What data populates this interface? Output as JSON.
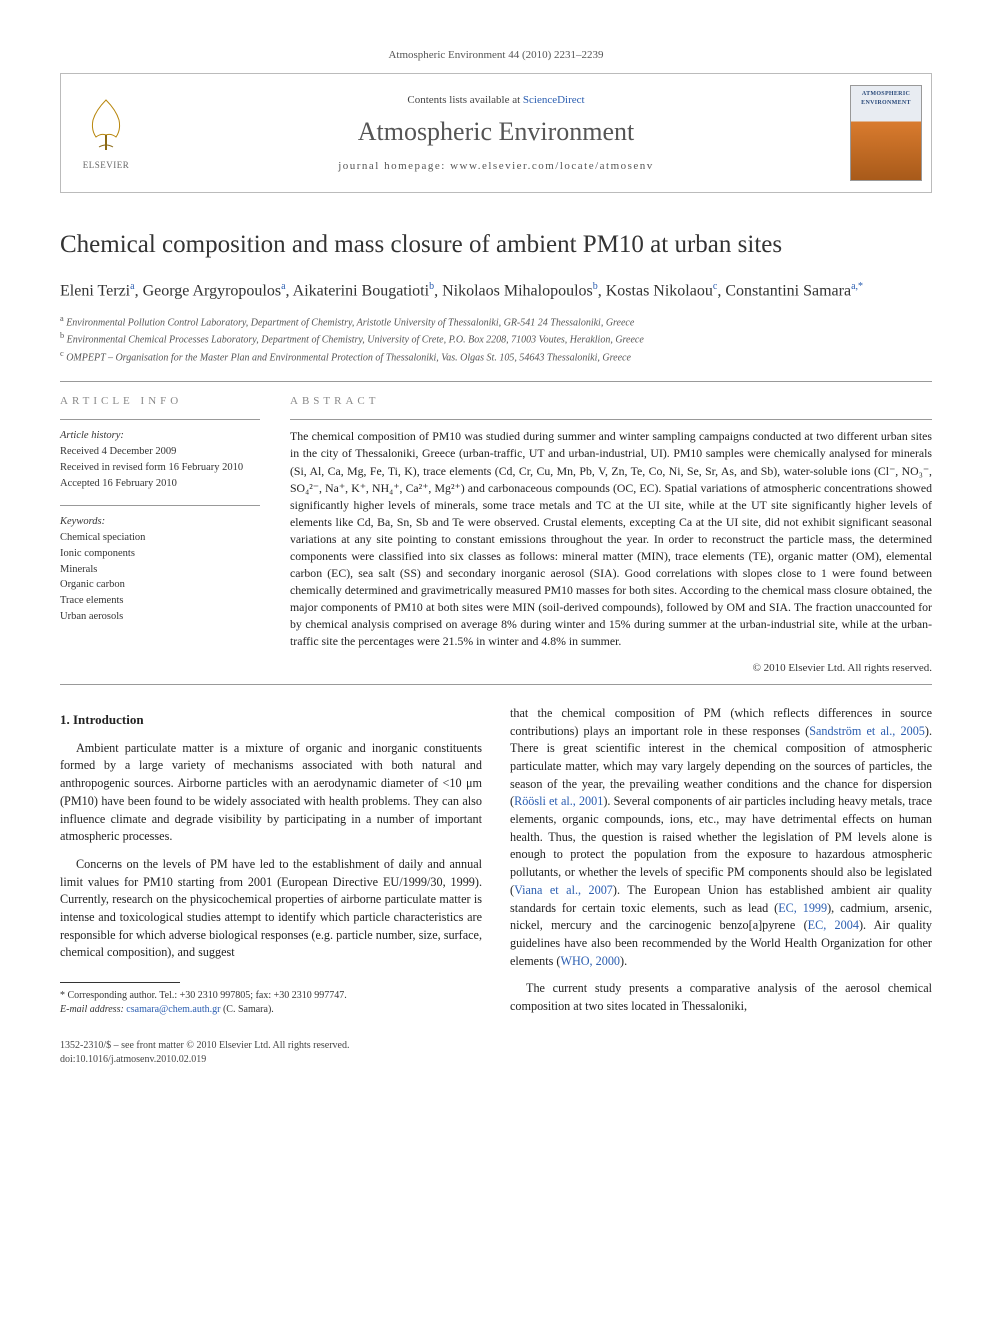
{
  "journal_ref": "Atmospheric Environment 44 (2010) 2231–2239",
  "header": {
    "contents_prefix": "Contents lists available at ",
    "contents_link": "ScienceDirect",
    "journal_name": "Atmospheric Environment",
    "homepage_prefix": "journal homepage: ",
    "homepage_url": "www.elsevier.com/locate/atmosenv",
    "elsevier_label": "ELSEVIER",
    "cover_title": "ATMOSPHERIC ENVIRONMENT"
  },
  "title": "Chemical composition and mass closure of ambient PM10 at urban sites",
  "authors_html": "Eleni Terzi<sup>a</sup>, George Argyropoulos<sup>a</sup>, Aikaterini Bougatioti<sup>b</sup>, Nikolaos Mihalopoulos<sup>b</sup>, Kostas Nikolaou<sup>c</sup>, Constantini Samara<sup>a,*</sup>",
  "affiliations": {
    "a": "Environmental Pollution Control Laboratory, Department of Chemistry, Aristotle University of Thessaloniki, GR-541 24 Thessaloniki, Greece",
    "b": "Environmental Chemical Processes Laboratory, Department of Chemistry, University of Crete, P.O. Box 2208, 71003 Voutes, Heraklion, Greece",
    "c": "OMPEPT – Organisation for the Master Plan and Environmental Protection of Thessaloniki, Vas. Olgas St. 105, 54643 Thessaloniki, Greece"
  },
  "article_info": {
    "label": "ARTICLE INFO",
    "history_title": "Article history:",
    "received": "Received 4 December 2009",
    "revised": "Received in revised form 16 February 2010",
    "accepted": "Accepted 16 February 2010",
    "keywords_title": "Keywords:",
    "keywords": [
      "Chemical speciation",
      "Ionic components",
      "Minerals",
      "Organic carbon",
      "Trace elements",
      "Urban aerosols"
    ]
  },
  "abstract": {
    "label": "ABSTRACT",
    "text": "The chemical composition of PM10 was studied during summer and winter sampling campaigns conducted at two different urban sites in the city of Thessaloniki, Greece (urban-traffic, UT and urban-industrial, UI). PM10 samples were chemically analysed for minerals (Si, Al, Ca, Mg, Fe, Ti, K), trace elements (Cd, Cr, Cu, Mn, Pb, V, Zn, Te, Co, Ni, Se, Sr, As, and Sb), water-soluble ions (Cl⁻, NO₃⁻, SO₄²⁻, Na⁺, K⁺, NH₄⁺, Ca²⁺, Mg²⁺) and carbonaceous compounds (OC, EC). Spatial variations of atmospheric concentrations showed significantly higher levels of minerals, some trace metals and TC at the UI site, while at the UT site significantly higher levels of elements like Cd, Ba, Sn, Sb and Te were observed. Crustal elements, excepting Ca at the UI site, did not exhibit significant seasonal variations at any site pointing to constant emissions throughout the year. In order to reconstruct the particle mass, the determined components were classified into six classes as follows: mineral matter (MIN), trace elements (TE), organic matter (OM), elemental carbon (EC), sea salt (SS) and secondary inorganic aerosol (SIA). Good correlations with slopes close to 1 were found between chemically determined and gravimetrically measured PM10 masses for both sites. According to the chemical mass closure obtained, the major components of PM10 at both sites were MIN (soil-derived compounds), followed by OM and SIA. The fraction unaccounted for by chemical analysis comprised on average 8% during winter and 15% during summer at the urban-industrial site, while at the urban-traffic site the percentages were 21.5% in winter and 4.8% in summer.",
    "copyright": "© 2010 Elsevier Ltd. All rights reserved."
  },
  "body": {
    "section_number": "1.",
    "section_title": "Introduction",
    "p1": "Ambient particulate matter is a mixture of organic and inorganic constituents formed by a large variety of mechanisms associated with both natural and anthropogenic sources. Airborne particles with an aerodynamic diameter of <10 μm (PM10) have been found to be widely associated with health problems. They can also influence climate and degrade visibility by participating in a number of important atmospheric processes.",
    "p2": "Concerns on the levels of PM have led to the establishment of daily and annual limit values for PM10 starting from 2001 (European Directive EU/1999/30, 1999). Currently, research on the physicochemical properties of airborne particulate matter is intense and toxicological studies attempt to identify which particle characteristics are responsible for which adverse biological responses (e.g. particle number, size, surface, chemical composition), and suggest",
    "p3_pre": "that the chemical composition of PM (which reflects differences in source contributions) plays an important role in these responses (",
    "p3_link1": "Sandström et al., 2005",
    "p3_mid1": "). There is great scientific interest in the chemical composition of atmospheric particulate matter, which may vary largely depending on the sources of particles, the season of the year, the prevailing weather conditions and the chance for dispersion (",
    "p3_link2": "Röösli et al., 2001",
    "p3_mid2": "). Several components of air particles including heavy metals, trace elements, organic compounds, ions, etc., may have detrimental effects on human health. Thus, the question is raised whether the legislation of PM levels alone is enough to protect the population from the exposure to hazardous atmospheric pollutants, or whether the levels of specific PM components should also be legislated (",
    "p3_link3": "Viana et al., 2007",
    "p3_mid3": "). The European Union has established ambient air quality standards for certain toxic elements, such as lead (",
    "p3_link4": "EC, 1999",
    "p3_mid4": "), cadmium, arsenic, nickel, mercury and the carcinogenic benzo[a]pyrene (",
    "p3_link5": "EC, 2004",
    "p3_mid5": "). Air quality guidelines have also been recommended by the World Health Organization for other elements (",
    "p3_link6": "WHO, 2000",
    "p3_end": ").",
    "p4": "The current study presents a comparative analysis of the aerosol chemical composition at two sites located in Thessaloniki,"
  },
  "footnote": {
    "corr": "* Corresponding author. Tel.: +30 2310 997805; fax: +30 2310 997747.",
    "email_label": "E-mail address: ",
    "email": "csamara@chem.auth.gr",
    "email_suffix": " (C. Samara)."
  },
  "footer": {
    "line1": "1352-2310/$ – see front matter © 2010 Elsevier Ltd. All rights reserved.",
    "line2": "doi:10.1016/j.atmosenv.2010.02.019"
  }
}
